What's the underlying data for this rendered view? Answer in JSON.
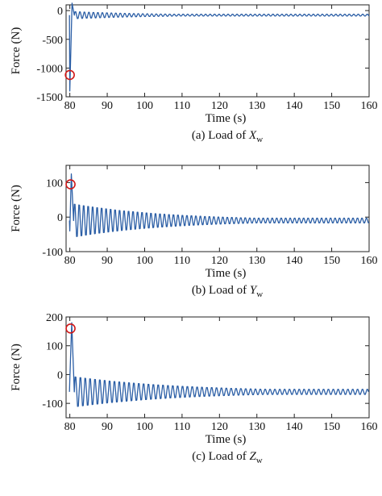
{
  "footnote": "",
  "chart_data": [
    {
      "type": "line",
      "caption": "(a) Load of ",
      "caption_var": "X",
      "caption_sub": "w",
      "xlabel": "Time (s)",
      "ylabel": "Force (N)",
      "xlim": [
        79,
        160
      ],
      "ylim": [
        -1500,
        100
      ],
      "xticks": [
        80,
        90,
        100,
        110,
        120,
        130,
        140,
        150,
        160
      ],
      "yticks": [
        0,
        -500,
        -1000,
        -1500
      ],
      "series": [
        {
          "color": "#2c5fa6",
          "peaks": [
            [
              80.0,
              -1400
            ],
            [
              80.6,
              130
            ]
          ],
          "baseline": -80,
          "oscillation": {
            "start": 81.2,
            "period": 1.2,
            "amp0": 70,
            "decay": 0.05,
            "amp_min": 18
          }
        }
      ],
      "marker": {
        "x": 80.0,
        "y": -1120,
        "color": "#d01818"
      }
    },
    {
      "type": "line",
      "caption": "(b) Load of ",
      "caption_var": "Y",
      "caption_sub": "w",
      "xlabel": "Time (s)",
      "ylabel": "Force (N)",
      "xlim": [
        79,
        160
      ],
      "ylim": [
        -100,
        150
      ],
      "xticks": [
        80,
        90,
        100,
        110,
        120,
        130,
        140,
        150,
        160
      ],
      "yticks": [
        100,
        0,
        -100
      ],
      "series": [
        {
          "color": "#2c5fa6",
          "peaks": [
            [
              80.0,
              -40
            ],
            [
              80.4,
              125
            ]
          ],
          "baseline": -10,
          "oscillation": {
            "start": 81.0,
            "period": 1.2,
            "amp0": 55,
            "decay": 0.04,
            "amp_min": 8
          }
        }
      ],
      "marker": {
        "x": 80.2,
        "y": 95,
        "color": "#d01818"
      }
    },
    {
      "type": "line",
      "caption": "(c) Load of ",
      "caption_var": "Z",
      "caption_sub": "w",
      "xlabel": "Time (s)",
      "ylabel": "Force (N)",
      "xlim": [
        79,
        160
      ],
      "ylim": [
        -150,
        200
      ],
      "xticks": [
        80,
        90,
        100,
        110,
        120,
        130,
        140,
        150,
        160
      ],
      "yticks": [
        200,
        100,
        0,
        -100
      ],
      "series": [
        {
          "color": "#2c5fa6",
          "peaks": [
            [
              80.0,
              -20
            ],
            [
              80.5,
              180
            ]
          ],
          "baseline": -60,
          "oscillation": {
            "start": 81.2,
            "period": 1.3,
            "amp0": 60,
            "decay": 0.035,
            "amp_min": 10
          }
        }
      ],
      "marker": {
        "x": 80.2,
        "y": 160,
        "color": "#d01818"
      }
    }
  ]
}
